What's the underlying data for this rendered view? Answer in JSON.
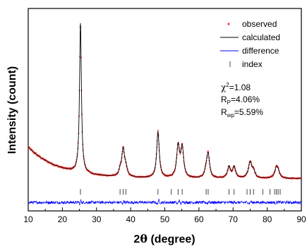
{
  "chart_data": {
    "type": "line",
    "xlabel_prefix": "2",
    "xlabel_theta": "θ",
    "xlabel_suffix": " (degree)",
    "ylabel": "Intensity (count)",
    "xlim": [
      10,
      90
    ],
    "x_ticks": [
      10,
      20,
      30,
      40,
      50,
      60,
      70,
      80,
      90
    ],
    "y_ticks_labeled": false,
    "grid": false,
    "legend_position": "top-right",
    "legend": [
      {
        "label": "observed",
        "color": "#ff3b3b",
        "marker": "dot"
      },
      {
        "label": "calculated",
        "color": "#000000",
        "marker": "line"
      },
      {
        "label": "difference",
        "color": "#0000ff",
        "marker": "line"
      },
      {
        "label": "index",
        "color": "#444444",
        "marker": "tick"
      }
    ],
    "stats": {
      "chi_sym": "χ",
      "chi_sup": "2",
      "chi_val": "=1.08",
      "rp_sym": "R",
      "rp_sub": "P",
      "rp_val": "=4.06%",
      "rwp_sym": "R",
      "rwp_sub": "wp",
      "rwp_val": "=5.59%"
    },
    "background": {
      "c": 0.2,
      "a": 2.35,
      "k": 0.11,
      "x0": 10
    },
    "peaks": [
      {
        "x": 25.3,
        "height": 11.2,
        "width": 0.33
      },
      {
        "x": 36.9,
        "height": 0.35,
        "width": 0.4
      },
      {
        "x": 37.8,
        "height": 2.05,
        "width": 0.5
      },
      {
        "x": 38.6,
        "height": 0.55,
        "width": 0.45
      },
      {
        "x": 48.0,
        "height": 3.45,
        "width": 0.45
      },
      {
        "x": 53.9,
        "height": 2.35,
        "width": 0.5
      },
      {
        "x": 55.1,
        "height": 2.2,
        "width": 0.5
      },
      {
        "x": 62.1,
        "height": 0.45,
        "width": 0.5
      },
      {
        "x": 62.7,
        "height": 1.75,
        "width": 0.5
      },
      {
        "x": 68.8,
        "height": 0.85,
        "width": 0.5
      },
      {
        "x": 70.3,
        "height": 0.85,
        "width": 0.5
      },
      {
        "x": 75.0,
        "height": 1.2,
        "width": 0.6
      },
      {
        "x": 76.0,
        "height": 0.45,
        "width": 0.5
      },
      {
        "x": 82.7,
        "height": 0.75,
        "width": 0.6
      },
      {
        "x": 83.2,
        "height": 0.35,
        "width": 0.5
      }
    ],
    "y_range": [
      0,
      12
    ],
    "index_ticks": [
      25.3,
      36.9,
      37.8,
      38.6,
      48.0,
      51.9,
      53.9,
      55.1,
      62.1,
      62.7,
      68.8,
      70.3,
      74.1,
      75.0,
      76.0,
      78.7,
      80.8,
      82.2,
      82.7,
      83.2,
      83.8
    ],
    "difference_noise_amplitude": 0.05
  }
}
